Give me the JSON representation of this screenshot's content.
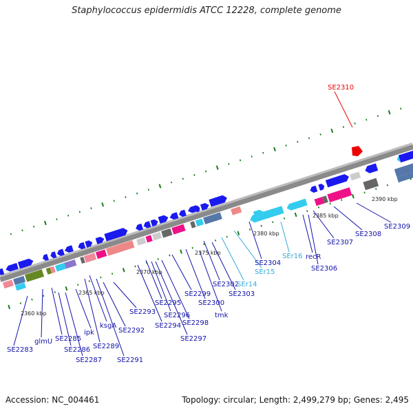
{
  "title": "Staphylococcus epidermidis ATCC 12228, complete genome",
  "footer": {
    "accession": "Accession: NC_004461",
    "summary": "Topology: circular; Length: 2,499,279 bp; Genes: 2,495"
  },
  "colors": {
    "backbone": "#8a8a8a",
    "gene_blue": "#1a1aee",
    "gene_cyan": "#33ccee",
    "label_blue": "#1111aa",
    "label_cyan": "#33aadd",
    "highlight_red": "#ee0000",
    "tick_green": "#1a7a1a"
  },
  "scale_labels": [
    "2360 kbp",
    "2365 kbp",
    "2370 kbp",
    "2375 kbp",
    "2380 kbp",
    "2385 kbp",
    "2390 kbp"
  ],
  "gene_labels": [
    "SE2283",
    "glmU",
    "SE2285",
    "SE2286",
    "SE2287",
    "ipk",
    "SE2289",
    "ksgA",
    "SE2291",
    "SE2292",
    "SE2293",
    "SE2294",
    "SE2295",
    "SE2296",
    "SE2297",
    "SE2298",
    "SE2299",
    "SE2300",
    "tmk",
    "SE2302",
    "SE2303",
    "SEr14",
    "SEr15",
    "SE2304",
    "SEr16",
    "recR",
    "SE2306",
    "SE2307",
    "SE2308",
    "SE2309",
    "SE2310"
  ]
}
